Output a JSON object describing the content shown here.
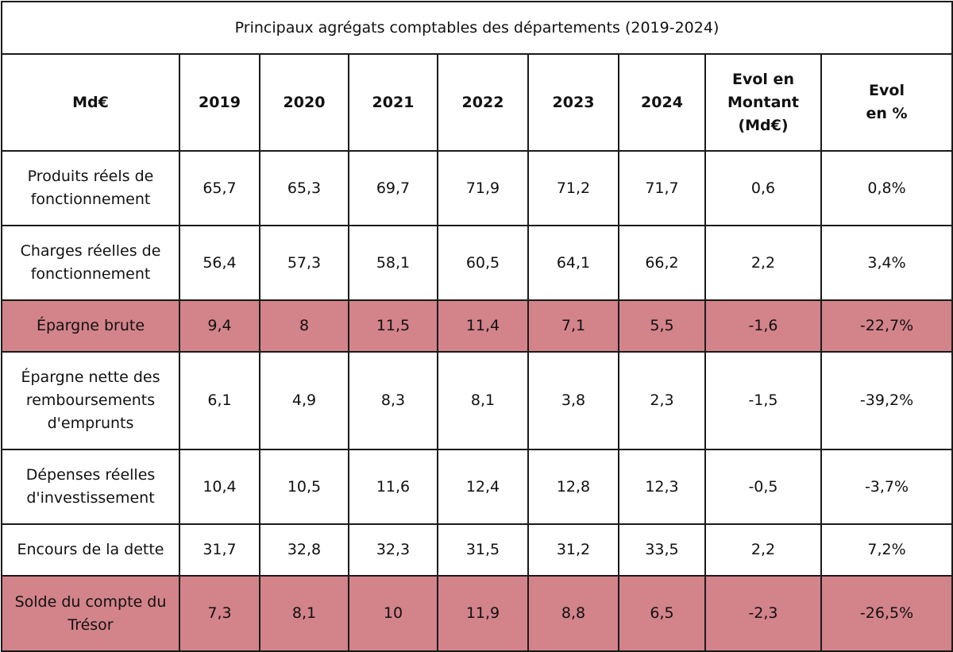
{
  "title": "Principaux agrégats comptables des départements (2019-2024)",
  "headers": [
    "Md€",
    "2019",
    "2020",
    "2021",
    "2022",
    "2023",
    "2024",
    "Evol en Montant (Md€)",
    "Evol en %"
  ],
  "header_lines": {
    "evol_montant": [
      "Evol en",
      "Montant",
      "(Md€)"
    ],
    "evol_pct": [
      "Evol",
      "en %"
    ]
  },
  "highlight_color": "#d3838a",
  "rows": [
    {
      "label": "Produits réels de fonctionnement",
      "values": [
        "65,7",
        "65,3",
        "69,7",
        "71,9",
        "71,2",
        "71,7",
        "0,6",
        "0,8%"
      ],
      "highlight": false
    },
    {
      "label": "Charges réelles de fonctionnement",
      "values": [
        "56,4",
        "57,3",
        "58,1",
        "60,5",
        "64,1",
        "66,2",
        "2,2",
        "3,4%"
      ],
      "highlight": false
    },
    {
      "label": "Épargne brute",
      "values": [
        "9,4",
        "8",
        "11,5",
        "11,4",
        "7,1",
        "5,5",
        "-1,6",
        "-22,7%"
      ],
      "highlight": true
    },
    {
      "label": "Épargne nette des remboursements d'emprunts",
      "values": [
        "6,1",
        "4,9",
        "8,3",
        "8,1",
        "3,8",
        "2,3",
        "-1,5",
        "-39,2%"
      ],
      "highlight": false
    },
    {
      "label": "Dépenses réelles d'investissement",
      "values": [
        "10,4",
        "10,5",
        "11,6",
        "12,4",
        "12,8",
        "12,3",
        "-0,5",
        "-3,7%"
      ],
      "highlight": false
    },
    {
      "label": "Encours de la dette",
      "values": [
        "31,7",
        "32,8",
        "32,3",
        "31,5",
        "31,2",
        "33,5",
        "2,2",
        "7,2%"
      ],
      "highlight": false
    },
    {
      "label": "Solde du compte du Trésor",
      "values": [
        "7,3",
        "8,1",
        "10",
        "11,9",
        "8,8",
        "6,5",
        "-2,3",
        "-26,5%"
      ],
      "highlight": true
    }
  ]
}
